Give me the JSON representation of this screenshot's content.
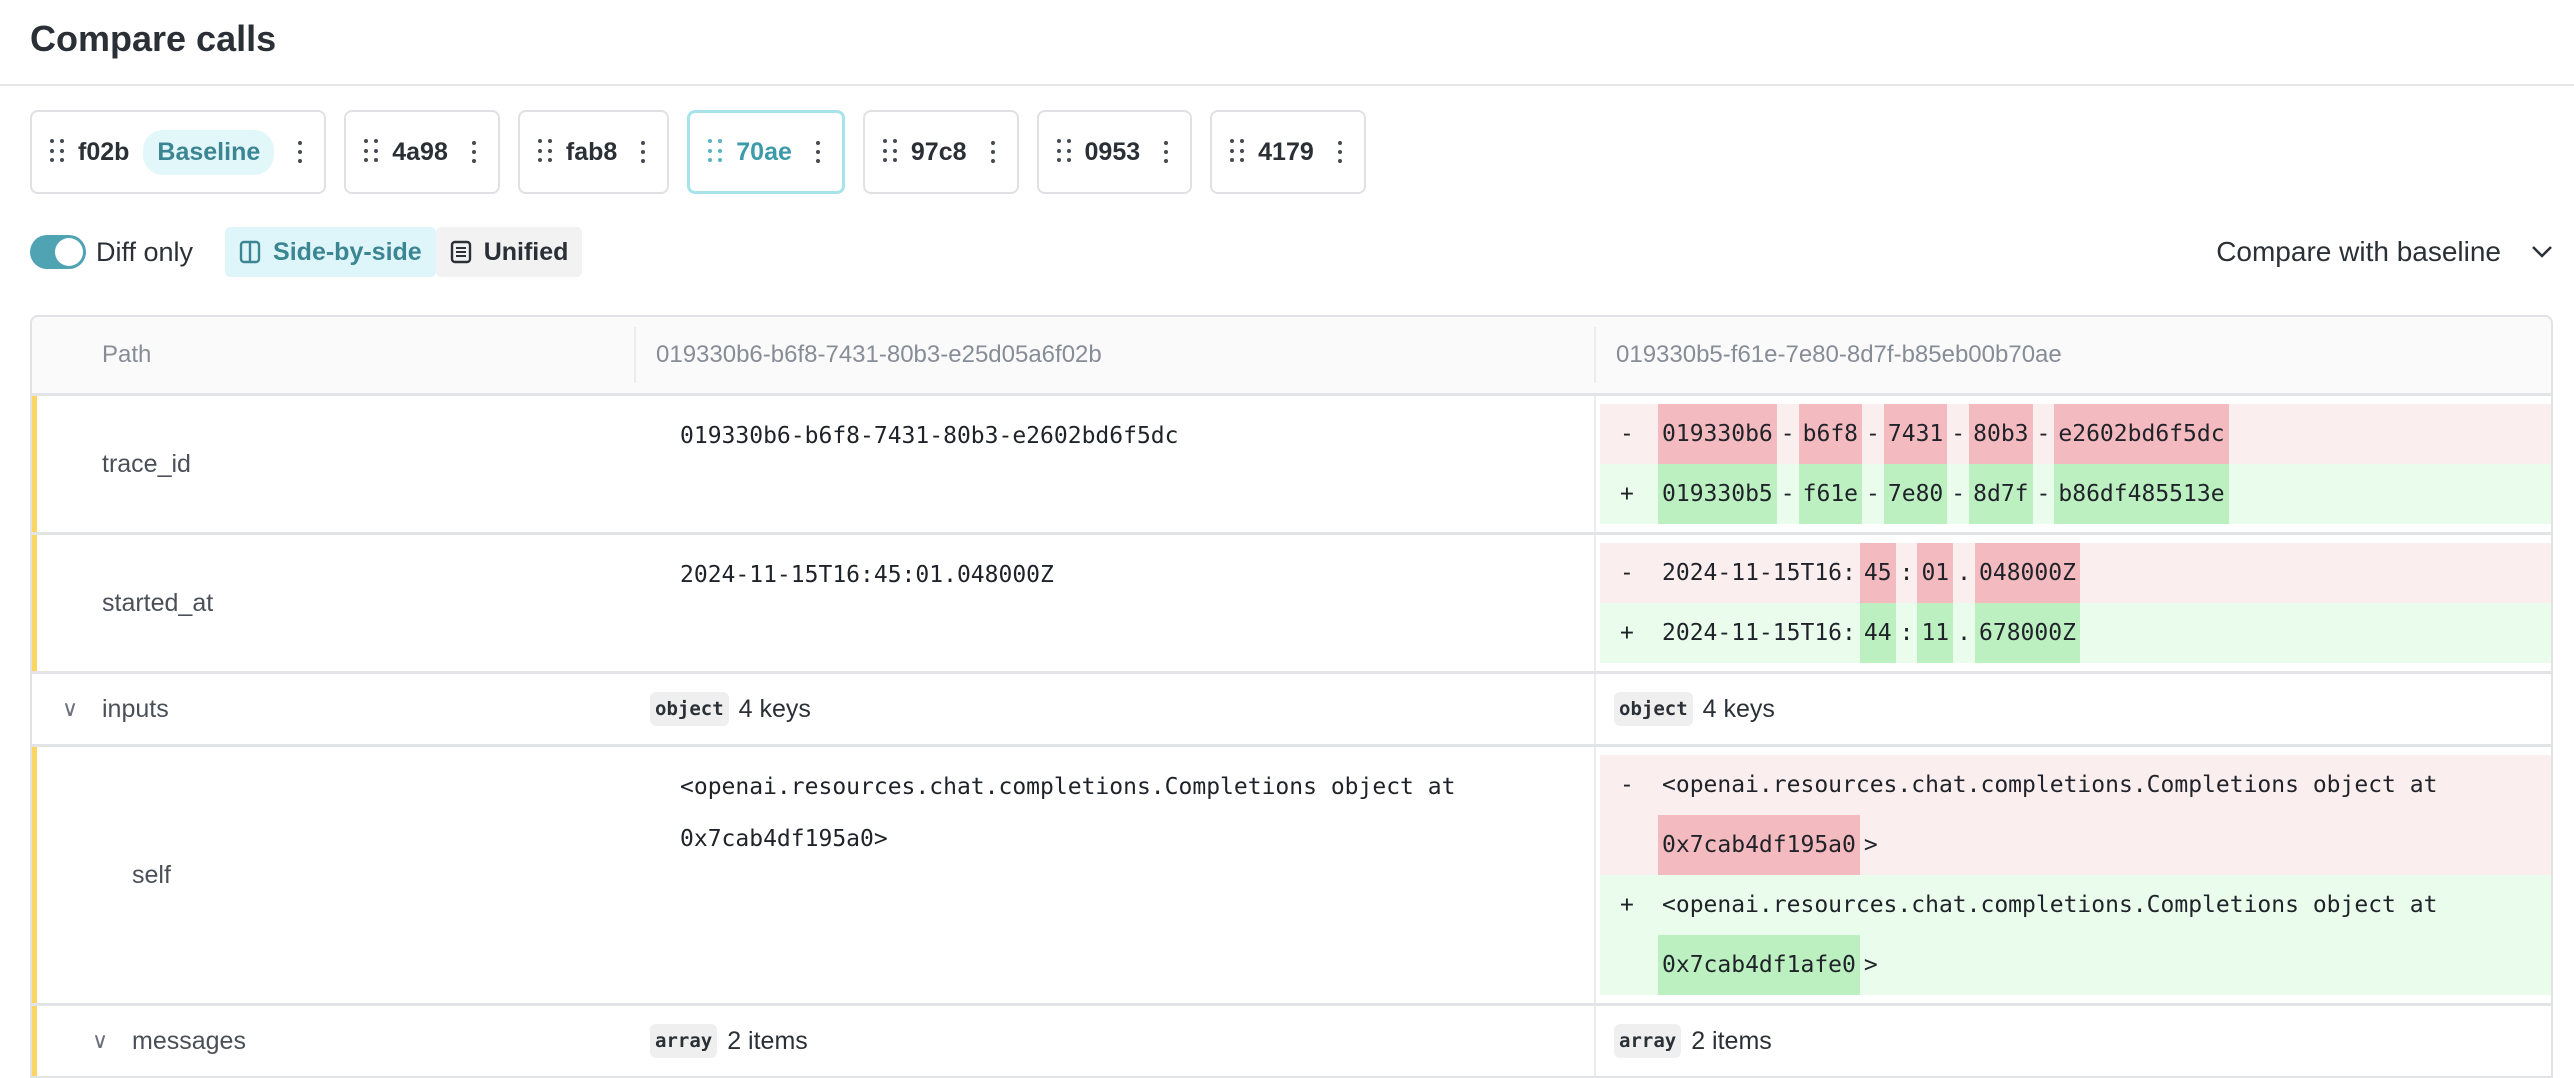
{
  "title": "Compare calls",
  "tabs": [
    {
      "id": "f02b",
      "badge": "Baseline",
      "selected": false
    },
    {
      "id": "4a98",
      "selected": false
    },
    {
      "id": "fab8",
      "selected": false
    },
    {
      "id": "70ae",
      "selected": true
    },
    {
      "id": "97c8",
      "selected": false
    },
    {
      "id": "0953",
      "selected": false
    },
    {
      "id": "4179",
      "selected": false
    }
  ],
  "toolbar": {
    "diff_only": "Diff only",
    "diff_only_on": true,
    "side_by_side": "Side-by-side",
    "unified": "Unified",
    "active_view": "Side-by-side",
    "compare_mode": "Compare with baseline"
  },
  "colors": {
    "accent": "#4fa3b3",
    "changed_marker": "#fdd564",
    "removed_bg": "#fbeeef",
    "removed_hl": "#f3babf",
    "added_bg": "#eafcec",
    "added_hl": "#bcf0c1"
  },
  "table": {
    "headers": [
      "Path",
      "019330b6-b6f8-7431-80b3-e25d05a6f02b",
      "019330b5-f61e-7e80-8d7f-b85eb00b70ae"
    ],
    "rows": [
      {
        "path": "trace_id",
        "left": "019330b6-b6f8-7431-80b3-e2602bd6f5dc",
        "diff": [
          {
            "sign": "-",
            "chunks": [
              [
                "019330b6",
                1
              ],
              [
                "-",
                0
              ],
              [
                "b6f8",
                1
              ],
              [
                "-",
                0
              ],
              [
                "7431",
                1
              ],
              [
                "-",
                0
              ],
              [
                "80b3",
                1
              ],
              [
                "-",
                0
              ],
              [
                "e2602bd6f5dc",
                1
              ]
            ]
          },
          {
            "sign": "+",
            "chunks": [
              [
                "019330b5",
                1
              ],
              [
                "-",
                0
              ],
              [
                "f61e",
                1
              ],
              [
                "-",
                0
              ],
              [
                "7e80",
                1
              ],
              [
                "-",
                0
              ],
              [
                "8d7f",
                1
              ],
              [
                "-",
                0
              ],
              [
                "b86df485513e",
                1
              ]
            ]
          }
        ]
      },
      {
        "path": "started_at",
        "left": "2024-11-15T16:45:01.048000Z",
        "diff": [
          {
            "sign": "-",
            "chunks": [
              [
                "2024-11-15T16:",
                0
              ],
              [
                "45",
                1
              ],
              [
                ":",
                0
              ],
              [
                "01",
                1
              ],
              [
                ".",
                0
              ],
              [
                "048000Z",
                1
              ]
            ]
          },
          {
            "sign": "+",
            "chunks": [
              [
                "2024-11-15T16:",
                0
              ],
              [
                "44",
                1
              ],
              [
                ":",
                0
              ],
              [
                "11",
                1
              ],
              [
                ".",
                0
              ],
              [
                "678000Z",
                1
              ]
            ]
          }
        ]
      },
      {
        "path": "inputs",
        "expandable": true,
        "left_type": "object",
        "left_summary": "4 keys",
        "right_type": "object",
        "right_summary": "4 keys"
      },
      {
        "path": "self",
        "left": "<openai.resources.chat.completions.Completions object at 0x7cab4df195a0>",
        "diff": [
          {
            "sign": "-",
            "chunks": [
              [
                "<openai.resources.chat.completions.Completions object at",
                0
              ],
              [
                "0x7cab4df195a0",
                1
              ],
              [
                ">",
                0
              ]
            ]
          },
          {
            "sign": "+",
            "chunks": [
              [
                "<openai.resources.chat.completions.Completions object at",
                0
              ],
              [
                "0x7cab4df1afe0",
                1
              ],
              [
                ">",
                0
              ]
            ]
          }
        ]
      },
      {
        "path": "messages",
        "expandable": true,
        "left_type": "array",
        "left_summary": "2 items",
        "right_type": "array",
        "right_summary": "2 items"
      }
    ]
  }
}
